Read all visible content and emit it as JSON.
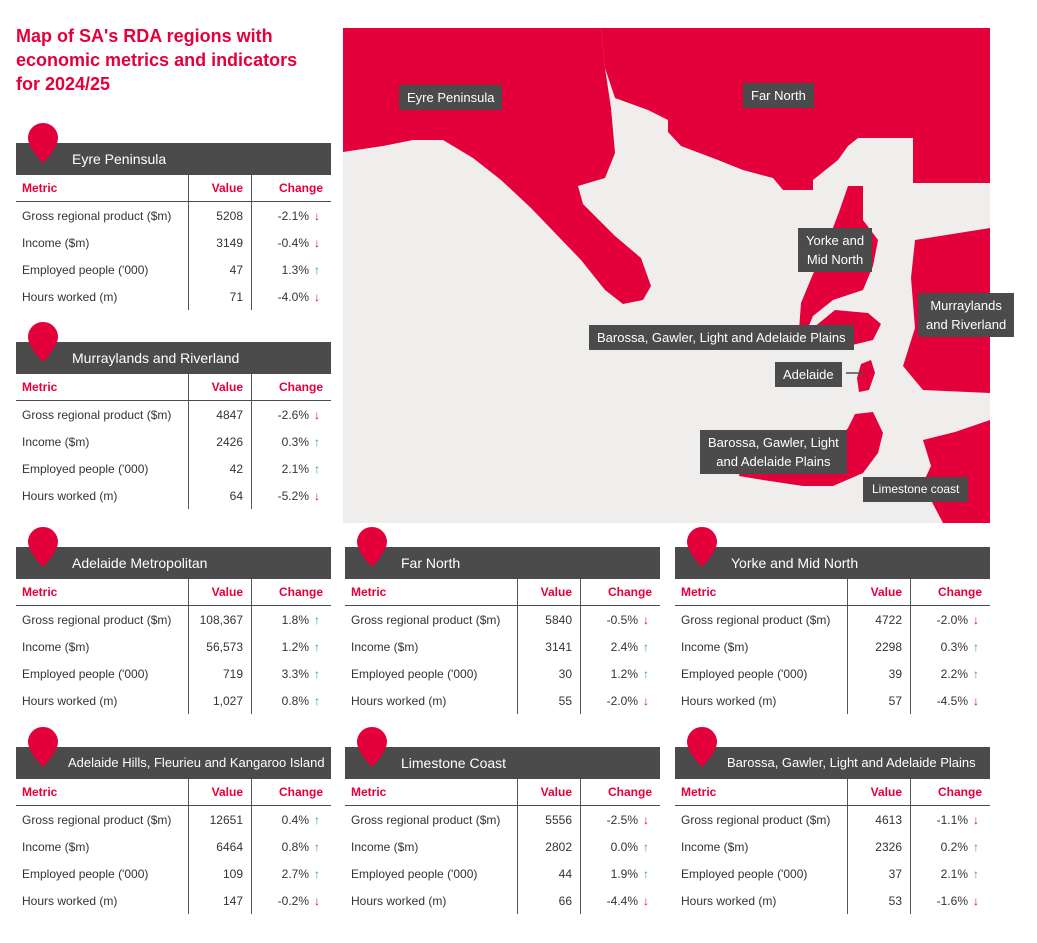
{
  "page": {
    "title": "Map of SA's RDA regions with economic metrics and indicators for 2024/25"
  },
  "colors": {
    "accent": "#e4003b",
    "header": "#4b4b4b",
    "up": "#2fa36b",
    "down": "#e4003b",
    "map_bg": "#efeeec"
  },
  "table_headers": {
    "metric": "Metric",
    "value": "Value",
    "change": "Change"
  },
  "map": {
    "labels": {
      "eyre": "Eyre Peninsula",
      "far_north": "Far North",
      "yorke_1": "Yorke and",
      "yorke_2": "Mid North",
      "murray_1": "Murraylands",
      "murray_2": "and Riverland",
      "barossa_upper": "Barossa, Gawler, Light and Adelaide Plains",
      "adelaide": "Adelaide",
      "barossa_lower_1": "Barossa, Gawler, Light",
      "barossa_lower_2": "and Adelaide Plains",
      "limestone": "Limestone coast"
    }
  },
  "regions": [
    {
      "name": "Eyre Peninsula",
      "rows": [
        {
          "metric": "Gross regional product ($m)",
          "value": "5208",
          "change": "-2.1%",
          "dir": "down"
        },
        {
          "metric": "Income ($m)",
          "value": "3149",
          "change": "-0.4%",
          "dir": "down"
        },
        {
          "metric": "Employed people ('000)",
          "value": "47",
          "change": "1.3%",
          "dir": "up"
        },
        {
          "metric": "Hours worked (m)",
          "value": "71",
          "change": "-4.0%",
          "dir": "down"
        }
      ]
    },
    {
      "name": "Murraylands and Riverland",
      "rows": [
        {
          "metric": "Gross regional product ($m)",
          "value": "4847",
          "change": "-2.6%",
          "dir": "down"
        },
        {
          "metric": "Income ($m)",
          "value": "2426",
          "change": "0.3%",
          "dir": "up"
        },
        {
          "metric": "Employed people ('000)",
          "value": "42",
          "change": "2.1%",
          "dir": "up"
        },
        {
          "metric": "Hours worked (m)",
          "value": "64",
          "change": "-5.2%",
          "dir": "down"
        }
      ]
    },
    {
      "name": "Adelaide Metropolitan",
      "rows": [
        {
          "metric": "Gross regional product ($m)",
          "value": "108,367",
          "change": "1.8%",
          "dir": "up"
        },
        {
          "metric": "Income ($m)",
          "value": "56,573",
          "change": "1.2%",
          "dir": "up"
        },
        {
          "metric": "Employed people ('000)",
          "value": "719",
          "change": "3.3%",
          "dir": "up"
        },
        {
          "metric": "Hours worked (m)",
          "value": "1,027",
          "change": "0.8%",
          "dir": "up"
        }
      ]
    },
    {
      "name": "Far North",
      "rows": [
        {
          "metric": "Gross regional product ($m)",
          "value": "5840",
          "change": "-0.5%",
          "dir": "down"
        },
        {
          "metric": "Income ($m)",
          "value": "3141",
          "change": "2.4%",
          "dir": "up"
        },
        {
          "metric": "Employed people ('000)",
          "value": "30",
          "change": "1.2%",
          "dir": "up"
        },
        {
          "metric": "Hours worked (m)",
          "value": "55",
          "change": "-2.0%",
          "dir": "down"
        }
      ]
    },
    {
      "name": "Yorke and Mid North",
      "rows": [
        {
          "metric": "Gross regional product ($m)",
          "value": "4722",
          "change": "-2.0%",
          "dir": "down"
        },
        {
          "metric": "Income ($m)",
          "value": "2298",
          "change": "0.3%",
          "dir": "up"
        },
        {
          "metric": "Employed people ('000)",
          "value": "39",
          "change": "2.2%",
          "dir": "up"
        },
        {
          "metric": "Hours worked (m)",
          "value": "57",
          "change": "-4.5%",
          "dir": "down"
        }
      ]
    },
    {
      "name": "Adelaide Hills, Fleurieu and Kangaroo Island",
      "rows": [
        {
          "metric": "Gross regional product ($m)",
          "value": "12651",
          "change": "0.4%",
          "dir": "up"
        },
        {
          "metric": "Income ($m)",
          "value": "6464",
          "change": "0.8%",
          "dir": "up"
        },
        {
          "metric": "Employed people ('000)",
          "value": "109",
          "change": "2.7%",
          "dir": "up"
        },
        {
          "metric": "Hours worked (m)",
          "value": "147",
          "change": "-0.2%",
          "dir": "down"
        }
      ]
    },
    {
      "name": "Limestone Coast",
      "rows": [
        {
          "metric": "Gross regional product ($m)",
          "value": "5556",
          "change": "-2.5%",
          "dir": "down"
        },
        {
          "metric": "Income ($m)",
          "value": "2802",
          "change": "0.0%",
          "dir": "up"
        },
        {
          "metric": "Employed people ('000)",
          "value": "44",
          "change": "1.9%",
          "dir": "up"
        },
        {
          "metric": "Hours worked (m)",
          "value": "66",
          "change": "-4.4%",
          "dir": "down"
        }
      ]
    },
    {
      "name": "Barossa, Gawler, Light and Adelaide Plains",
      "rows": [
        {
          "metric": "Gross regional product ($m)",
          "value": "4613",
          "change": "-1.1%",
          "dir": "down"
        },
        {
          "metric": "Income ($m)",
          "value": "2326",
          "change": "0.2%",
          "dir": "up"
        },
        {
          "metric": "Employed people ('000)",
          "value": "37",
          "change": "2.1%",
          "dir": "up"
        },
        {
          "metric": "Hours worked (m)",
          "value": "53",
          "change": "-1.6%",
          "dir": "down"
        }
      ]
    }
  ]
}
